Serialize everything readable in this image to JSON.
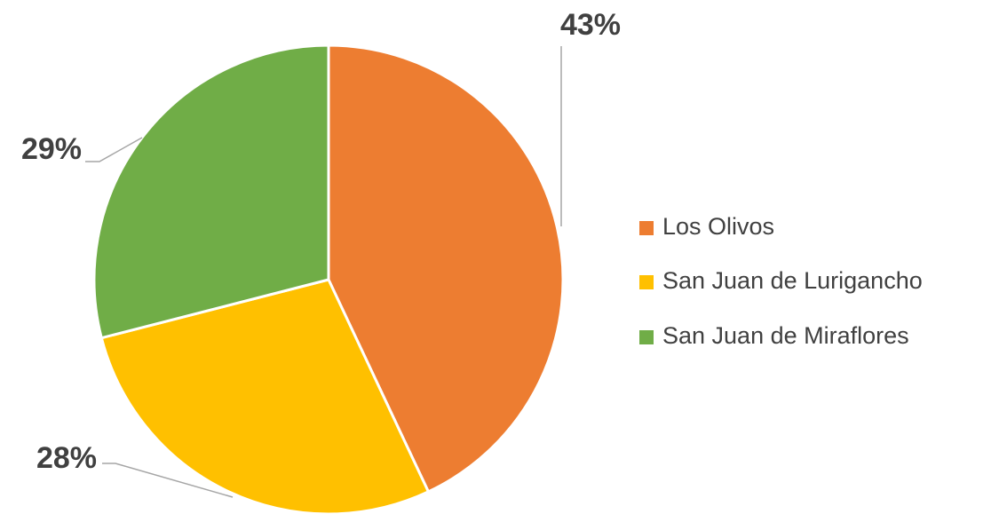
{
  "chart_data": {
    "type": "pie",
    "categories": [
      "Los Olivos",
      "San Juan de Lurigancho",
      "San Juan de Miraflores"
    ],
    "values": [
      43,
      28,
      29
    ],
    "value_labels": [
      "43%",
      "28%",
      "29%"
    ],
    "colors": [
      "#ED7D31",
      "#FFC000",
      "#70AD47"
    ],
    "legend": "right"
  }
}
